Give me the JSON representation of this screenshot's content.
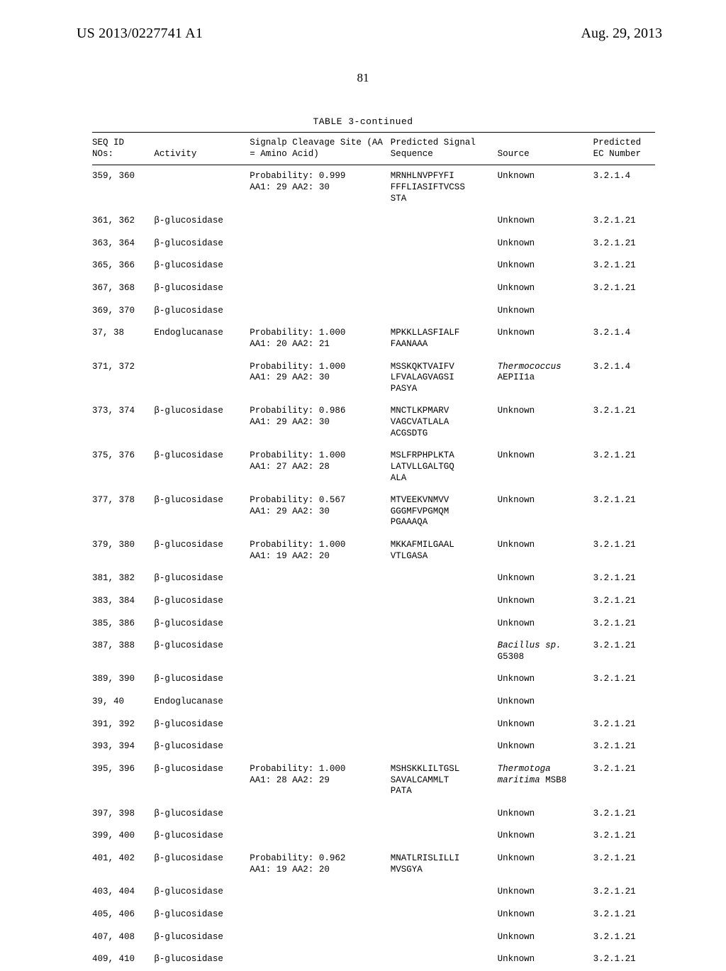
{
  "header": {
    "pub_number": "US 2013/0227741 A1",
    "pub_date": "Aug. 29, 2013",
    "page": "81"
  },
  "table": {
    "caption": "TABLE 3-continued",
    "columns": [
      "SEQ ID\nNOs:",
      "Activity",
      "Signalp Cleavage\nSite (AA = Amino\nAcid)",
      "Predicted Signal\nSequence",
      "Source",
      "Predicted\nEC\nNumber"
    ],
    "rows": [
      {
        "seq": "359, 360",
        "activity": "",
        "site": "Probability: 0.999\nAA1: 29 AA2: 30",
        "signal": "MRNHLNVPFYFI\nFFFLIASIFTVCSS\nSTA",
        "source": "Unknown",
        "source_italic": false,
        "ec": "3.2.1.4"
      },
      {
        "seq": "361, 362",
        "activity": "β-glucosidase",
        "site": "",
        "signal": "",
        "source": "Unknown",
        "source_italic": false,
        "ec": "3.2.1.21"
      },
      {
        "seq": "363, 364",
        "activity": "β-glucosidase",
        "site": "",
        "signal": "",
        "source": "Unknown",
        "source_italic": false,
        "ec": "3.2.1.21"
      },
      {
        "seq": "365, 366",
        "activity": "β-glucosidase",
        "site": "",
        "signal": "",
        "source": "Unknown",
        "source_italic": false,
        "ec": "3.2.1.21"
      },
      {
        "seq": "367, 368",
        "activity": "β-glucosidase",
        "site": "",
        "signal": "",
        "source": "Unknown",
        "source_italic": false,
        "ec": "3.2.1.21"
      },
      {
        "seq": "369, 370",
        "activity": "β-glucosidase",
        "site": "",
        "signal": "",
        "source": "Unknown",
        "source_italic": false,
        "ec": ""
      },
      {
        "seq": " 37, 38",
        "activity": "Endoglucanase",
        "site": "Probability: 1.000\nAA1: 20 AA2: 21",
        "signal": "MPKKLLASFIALF\nFAANAAA",
        "source": "Unknown",
        "source_italic": false,
        "ec": "3.2.1.4"
      },
      {
        "seq": "371, 372",
        "activity": "",
        "site": "Probability: 1.000\nAA1: 29 AA2: 30",
        "signal": "MSSKQKTVAIFV\nLFVALAGVAGSI\nPASYA",
        "source": "Thermococcus\nAEPII1a",
        "source_italic": true,
        "source_tail": "AEPII1a",
        "ec": "3.2.1.4"
      },
      {
        "seq": "373, 374",
        "activity": "β-glucosidase",
        "site": "Probability: 0.986\nAA1: 29 AA2: 30",
        "signal": "MNCTLKPMARV\nVAGCVATLALA\nACGSDTG",
        "source": "Unknown",
        "source_italic": false,
        "ec": "3.2.1.21"
      },
      {
        "seq": "375, 376",
        "activity": "β-glucosidase",
        "site": "Probability: 1.000\nAA1: 27 AA2: 28",
        "signal": "MSLFRPHPLKTA\nLATVLLGALTGQ\nALA",
        "source": "Unknown",
        "source_italic": false,
        "ec": "3.2.1.21"
      },
      {
        "seq": "377, 378",
        "activity": "β-glucosidase",
        "site": "Probability: 0.567\nAA1: 29 AA2: 30",
        "signal": "MTVEEKVNMVV\nGGGMFVPGMQM\nPGAAAQA",
        "source": "Unknown",
        "source_italic": false,
        "ec": "3.2.1.21"
      },
      {
        "seq": "379, 380",
        "activity": "β-glucosidase",
        "site": "Probability: 1.000\nAA1: 19 AA2: 20",
        "signal": "MKKAFMILGAAL\nVTLGASA",
        "source": "Unknown",
        "source_italic": false,
        "ec": "3.2.1.21"
      },
      {
        "seq": "381, 382",
        "activity": "β-glucosidase",
        "site": "",
        "signal": "",
        "source": "Unknown",
        "source_italic": false,
        "ec": "3.2.1.21"
      },
      {
        "seq": "383, 384",
        "activity": "β-glucosidase",
        "site": "",
        "signal": "",
        "source": "Unknown",
        "source_italic": false,
        "ec": "3.2.1.21"
      },
      {
        "seq": "385, 386",
        "activity": "β-glucosidase",
        "site": "",
        "signal": "",
        "source": "Unknown",
        "source_italic": false,
        "ec": "3.2.1.21"
      },
      {
        "seq": "387, 388",
        "activity": "β-glucosidase",
        "site": "",
        "signal": "",
        "source": "Bacillus sp.\nG5308",
        "source_italic": true,
        "source_tail": "G5308",
        "ec": "3.2.1.21"
      },
      {
        "seq": "389, 390",
        "activity": "β-glucosidase",
        "site": "",
        "signal": "",
        "source": "Unknown",
        "source_italic": false,
        "ec": "3.2.1.21"
      },
      {
        "seq": " 39, 40",
        "activity": "Endoglucanase",
        "site": "",
        "signal": "",
        "source": "Unknown",
        "source_italic": false,
        "ec": ""
      },
      {
        "seq": "391, 392",
        "activity": "β-glucosidase",
        "site": "",
        "signal": "",
        "source": "Unknown",
        "source_italic": false,
        "ec": "3.2.1.21"
      },
      {
        "seq": "393, 394",
        "activity": "β-glucosidase",
        "site": "",
        "signal": "",
        "source": "Unknown",
        "source_italic": false,
        "ec": "3.2.1.21"
      },
      {
        "seq": "395, 396",
        "activity": "β-glucosidase",
        "site": "Probability: 1.000\nAA1: 28 AA2: 29",
        "signal": "MSHSKKLILTGSL\nSAVALCAMMLT\nPATA",
        "source": "Thermotoga\nmaritima MSB8",
        "source_italic": true,
        "source_tail": "MSB8",
        "ec": "3.2.1.21"
      },
      {
        "seq": "397, 398",
        "activity": "β-glucosidase",
        "site": "",
        "signal": "",
        "source": "Unknown",
        "source_italic": false,
        "ec": "3.2.1.21"
      },
      {
        "seq": "399, 400",
        "activity": "β-glucosidase",
        "site": "",
        "signal": "",
        "source": "Unknown",
        "source_italic": false,
        "ec": "3.2.1.21"
      },
      {
        "seq": "401, 402",
        "activity": "β-glucosidase",
        "site": "Probability: 0.962\nAA1: 19 AA2: 20",
        "signal": "MNATLRISLILLI\nMVSGYA",
        "source": "Unknown",
        "source_italic": false,
        "ec": "3.2.1.21"
      },
      {
        "seq": "403, 404",
        "activity": "β-glucosidase",
        "site": "",
        "signal": "",
        "source": "Unknown",
        "source_italic": false,
        "ec": "3.2.1.21"
      },
      {
        "seq": "405, 406",
        "activity": "β-glucosidase",
        "site": "",
        "signal": "",
        "source": "Unknown",
        "source_italic": false,
        "ec": "3.2.1.21"
      },
      {
        "seq": "407, 408",
        "activity": "β-glucosidase",
        "site": "",
        "signal": "",
        "source": "Unknown",
        "source_italic": false,
        "ec": "3.2.1.21"
      },
      {
        "seq": "409, 410",
        "activity": "β-glucosidase",
        "site": "",
        "signal": "",
        "source": "Unknown",
        "source_italic": false,
        "ec": "3.2.1.21"
      }
    ]
  }
}
